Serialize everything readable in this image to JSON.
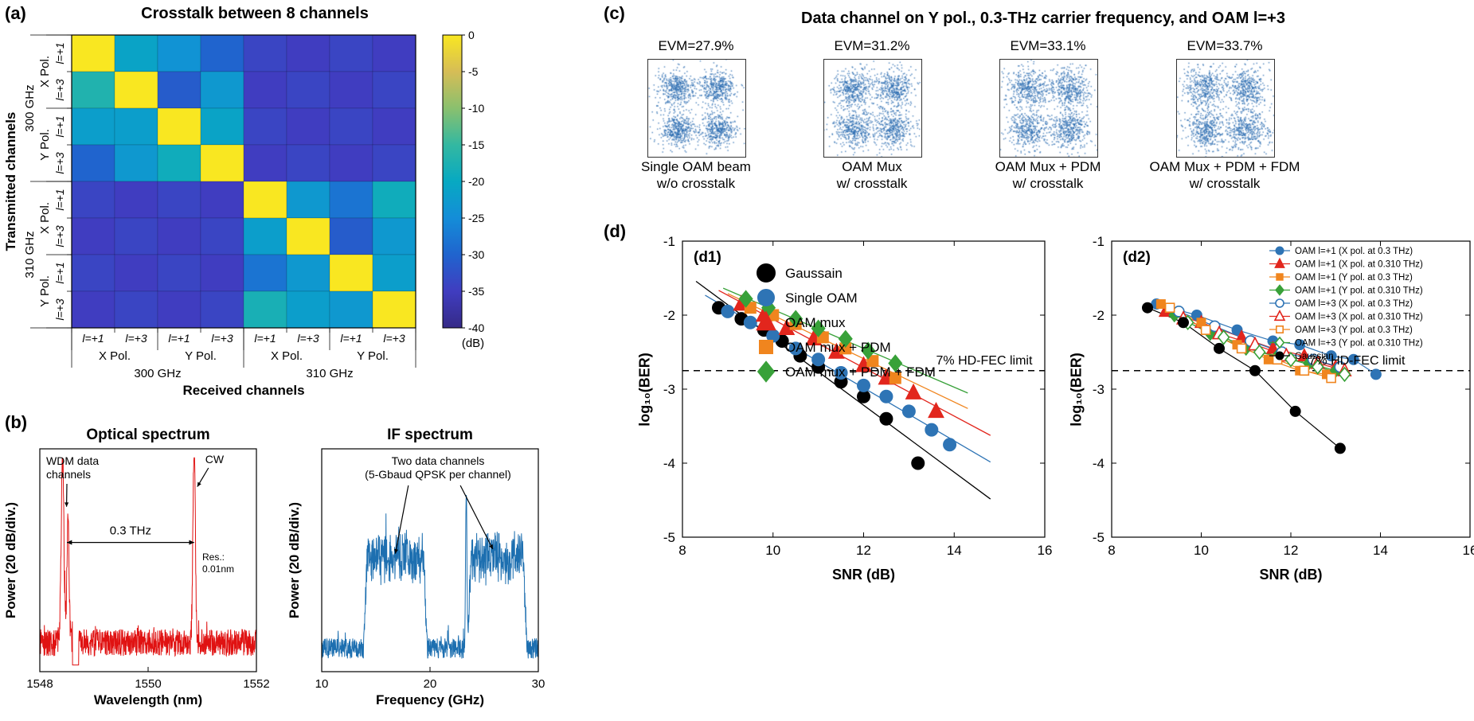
{
  "labels": {
    "a": "(a)",
    "b": "(b)",
    "c": "(c)",
    "d": "(d)"
  },
  "chart_data": [
    {
      "id": "crosstalk_heatmap",
      "type": "heatmap",
      "title": "Crosstalk between 8 channels",
      "xlabel": "Received channels",
      "ylabel": "Transmitted channels",
      "unit": "dB",
      "vmin": -40,
      "vmax": 0,
      "colorbar_label": "(dB)",
      "colorbar_ticks": [
        0,
        -5,
        -10,
        -15,
        -20,
        -25,
        -30,
        -35,
        -40
      ],
      "mode_labels": [
        "l=+1",
        "l=+3",
        "l=+1",
        "l=+3",
        "l=+1",
        "l=+3",
        "l=+1",
        "l=+3"
      ],
      "pol_labels": [
        "X Pol.",
        "Y Pol.",
        "X Pol.",
        "Y Pol."
      ],
      "freq_labels": [
        "300 GHz",
        "310 GHz"
      ],
      "colormap": [
        "#352a87",
        "#403dc0",
        "#2064ce",
        "#148dd8",
        "#07a9c2",
        "#33b8a1",
        "#8ac06e",
        "#d6bd56",
        "#f9e721"
      ],
      "values": [
        [
          0,
          -21,
          -24,
          -30,
          -34,
          -35,
          -34,
          -35
        ],
        [
          -17,
          0,
          -31,
          -23,
          -35,
          -34,
          -35,
          -34
        ],
        [
          -22,
          -22,
          0,
          -21,
          -34,
          -35,
          -34,
          -35
        ],
        [
          -30,
          -23,
          -19,
          0,
          -35,
          -34,
          -35,
          -34
        ],
        [
          -34,
          -35,
          -34,
          -35,
          0,
          -23,
          -28,
          -19
        ],
        [
          -35,
          -34,
          -35,
          -34,
          -22,
          0,
          -31,
          -23
        ],
        [
          -34,
          -35,
          -34,
          -35,
          -28,
          -23,
          0,
          -22
        ],
        [
          -35,
          -34,
          -35,
          -34,
          -18,
          -22,
          -23,
          0
        ]
      ]
    },
    {
      "id": "optical_spectrum",
      "type": "line",
      "title": "Optical spectrum",
      "xlabel": "Wavelength (nm)",
      "ylabel": "Power (20 dB/div.)",
      "xlim": [
        1548,
        1552
      ],
      "xticks": [
        1548,
        1550,
        1552
      ],
      "line_color": "#e01212",
      "noise_floor": 0.17,
      "peaks": [
        {
          "x": 1548.42,
          "height": 0.84,
          "sigma": 0.025
        },
        {
          "x": 1548.52,
          "height": 0.55,
          "sigma": 0.02
        },
        {
          "x": 1550.85,
          "height": 0.9,
          "sigma": 0.022
        }
      ],
      "annotations": {
        "peak1_label": "WDM data\nchannels",
        "peak2_label": "CW",
        "span_label": "0.3 THz",
        "span_x": [
          1548.5,
          1550.85
        ],
        "res_label": "Res.:\n0.01nm"
      }
    },
    {
      "id": "if_spectrum",
      "type": "line",
      "title": "IF spectrum",
      "xlabel": "Frequency (GHz)",
      "ylabel": "Power (20 dB/div.)",
      "xlim": [
        10,
        30
      ],
      "xticks": [
        10,
        20,
        30
      ],
      "line_color": "#1d6fb0",
      "noise_floor": 0.13,
      "bands": [
        {
          "start": 14.2,
          "end": 19.4,
          "level": 0.4
        },
        {
          "start": 23.8,
          "end": 28.6,
          "level": 0.4
        }
      ],
      "spike": {
        "x": 23.35,
        "height": 0.72
      },
      "annotation": "Two data channels\n(5-Gbaud QPSK per channel)"
    },
    {
      "id": "constellations",
      "type": "scatter",
      "title": "Data channel on Y pol., 0.3-THz carrier frequency, and OAM l=+3",
      "modulation": "QPSK",
      "dot_color": "#2a6bb0",
      "clusters": [
        [
          1,
          1
        ],
        [
          -1,
          1
        ],
        [
          -1,
          -1
        ],
        [
          1,
          -1
        ]
      ],
      "points_per_cluster": 430,
      "items": [
        {
          "evm": "EVM=27.9%",
          "evm_value": 27.9,
          "line1": "Single OAM beam",
          "line2": "w/o crosstalk"
        },
        {
          "evm": "EVM=31.2%",
          "evm_value": 31.2,
          "line1": "OAM Mux",
          "line2": "w/ crosstalk"
        },
        {
          "evm": "EVM=33.1%",
          "evm_value": 33.1,
          "line1": "OAM Mux + PDM",
          "line2": "w/ crosstalk"
        },
        {
          "evm": "EVM=33.7%",
          "evm_value": 33.7,
          "line1": "OAM Mux + PDM + FDM",
          "line2": "w/ crosstalk"
        }
      ]
    },
    {
      "id": "d1_ber_vs_snr",
      "type": "scatter",
      "panel": "(d1)",
      "xlabel": "SNR (dB)",
      "ylabel": "log10(BER)",
      "ylabel_display": "log₁₀(BER)",
      "xlim": [
        8,
        16
      ],
      "ylim": [
        -5,
        -1
      ],
      "xticks": [
        8,
        10,
        12,
        14,
        16
      ],
      "yticks": [
        -1,
        -2,
        -3,
        -4,
        -5
      ],
      "fec": {
        "y": -2.75,
        "label": "7% HD-FEC limit"
      },
      "series": [
        {
          "name": "Gaussain",
          "marker": "circle",
          "color": "#000000",
          "open": false,
          "x": [
            8.8,
            9.3,
            9.8,
            10.2,
            10.6,
            11.0,
            11.5,
            12.0,
            12.5,
            13.2
          ],
          "y": [
            -1.9,
            -2.05,
            -2.2,
            -2.35,
            -2.55,
            -2.7,
            -2.9,
            -3.1,
            -3.4,
            -4.0
          ]
        },
        {
          "name": "Single OAM",
          "marker": "circle",
          "color": "#2e74b5",
          "open": false,
          "x": [
            9.0,
            9.5,
            10.0,
            10.5,
            11.0,
            11.5,
            12.0,
            12.5,
            13.0,
            13.5,
            13.9
          ],
          "y": [
            -1.95,
            -2.1,
            -2.28,
            -2.45,
            -2.6,
            -2.78,
            -2.95,
            -3.1,
            -3.3,
            -3.55,
            -3.75
          ]
        },
        {
          "name": "OAM mux",
          "marker": "triangle",
          "color": "#e2261d",
          "open": false,
          "x": [
            9.3,
            9.8,
            10.3,
            10.9,
            11.4,
            12.0,
            12.5,
            13.1,
            13.6
          ],
          "y": [
            -1.85,
            -2.0,
            -2.18,
            -2.32,
            -2.5,
            -2.68,
            -2.85,
            -3.05,
            -3.3
          ]
        },
        {
          "name": "OAM mux + PDM",
          "marker": "square",
          "color": "#f0851e",
          "open": false,
          "x": [
            9.5,
            10.0,
            10.5,
            11.1,
            11.6,
            12.2,
            12.7
          ],
          "y": [
            -1.9,
            -2.0,
            -2.12,
            -2.3,
            -2.45,
            -2.62,
            -2.85
          ]
        },
        {
          "name": "OAM mux + PDM + FDM",
          "marker": "diamond",
          "color": "#38a139",
          "open": false,
          "x": [
            9.4,
            9.9,
            10.5,
            11.0,
            11.6,
            12.1,
            12.7
          ],
          "y": [
            -1.78,
            -1.9,
            -2.05,
            -2.18,
            -2.32,
            -2.48,
            -2.65
          ]
        }
      ]
    },
    {
      "id": "d2_ber_vs_snr",
      "type": "scatter",
      "panel": "(d2)",
      "xlabel": "SNR (dB)",
      "ylabel": "log10(BER)",
      "ylabel_display": "log₁₀(BER)",
      "xlim": [
        8,
        16
      ],
      "ylim": [
        -5,
        -1
      ],
      "xticks": [
        8,
        10,
        12,
        14,
        16
      ],
      "yticks": [
        -1,
        -2,
        -3,
        -4,
        -5
      ],
      "fec": {
        "y": -2.75,
        "label": "7% HD-FEC limit"
      },
      "series": [
        {
          "name": "OAM l=+1 (X pol. at 0.3 THz)",
          "marker": "circle",
          "color": "#2e74b5",
          "open": false,
          "x": [
            9.0,
            9.9,
            10.8,
            11.6,
            12.2,
            12.9,
            13.4,
            13.9
          ],
          "y": [
            -1.85,
            -2.0,
            -2.2,
            -2.35,
            -2.4,
            -2.55,
            -2.6,
            -2.8
          ]
        },
        {
          "name": "OAM l=+1 (X pol. at 0.310 THz)",
          "marker": "triangle",
          "color": "#e2261d",
          "open": false,
          "x": [
            9.2,
            10.0,
            10.9,
            11.6,
            12.3,
            13.0
          ],
          "y": [
            -1.95,
            -2.1,
            -2.3,
            -2.45,
            -2.55,
            -2.7
          ]
        },
        {
          "name": "OAM l=+1 (Y pol. at 0.3 THz)",
          "marker": "square",
          "color": "#f0851e",
          "open": false,
          "x": [
            9.1,
            10.0,
            10.8,
            11.5,
            12.2,
            12.8
          ],
          "y": [
            -1.85,
            -2.1,
            -2.4,
            -2.6,
            -2.75,
            -2.8
          ]
        },
        {
          "name": "OAM l=+1 (Y pol. at 0.310 THz)",
          "marker": "diamond",
          "color": "#38a139",
          "open": false,
          "x": [
            9.4,
            10.2,
            11.0,
            11.7,
            12.4,
            13.0
          ],
          "y": [
            -2.0,
            -2.25,
            -2.45,
            -2.55,
            -2.65,
            -2.75
          ]
        },
        {
          "name": "OAM l=+3 (X pol. at 0.3 THz)",
          "marker": "circle",
          "color": "#2e74b5",
          "open": true,
          "x": [
            9.5,
            10.3,
            11.1,
            11.8,
            12.5,
            13.1
          ],
          "y": [
            -1.95,
            -2.15,
            -2.35,
            -2.5,
            -2.6,
            -2.7
          ]
        },
        {
          "name": "OAM l=+3 (X pol. at 0.310 THz)",
          "marker": "triangle",
          "color": "#e2261d",
          "open": true,
          "x": [
            9.6,
            10.4,
            11.2,
            11.9,
            12.6,
            13.2
          ],
          "y": [
            -2.05,
            -2.25,
            -2.4,
            -2.55,
            -2.65,
            -2.75
          ]
        },
        {
          "name": "OAM l=+3 (Y pol. at 0.3 THz)",
          "marker": "square",
          "color": "#f0851e",
          "open": true,
          "x": [
            9.3,
            10.1,
            10.9,
            11.7,
            12.3,
            12.9
          ],
          "y": [
            -1.9,
            -2.2,
            -2.45,
            -2.6,
            -2.75,
            -2.85
          ]
        },
        {
          "name": "OAM l=+3 (Y pol. at 0.310 THz)",
          "marker": "diamond",
          "color": "#38a139",
          "open": true,
          "x": [
            9.7,
            10.5,
            11.3,
            12.0,
            12.6,
            13.2
          ],
          "y": [
            -2.1,
            -2.3,
            -2.5,
            -2.6,
            -2.7,
            -2.8
          ]
        },
        {
          "name": "Gaussian",
          "marker": "circle",
          "color": "#000000",
          "open": false,
          "x": [
            8.8,
            9.6,
            10.4,
            11.2,
            12.1,
            13.1
          ],
          "y": [
            -1.9,
            -2.1,
            -2.45,
            -2.75,
            -3.3,
            -3.8
          ]
        }
      ]
    }
  ]
}
